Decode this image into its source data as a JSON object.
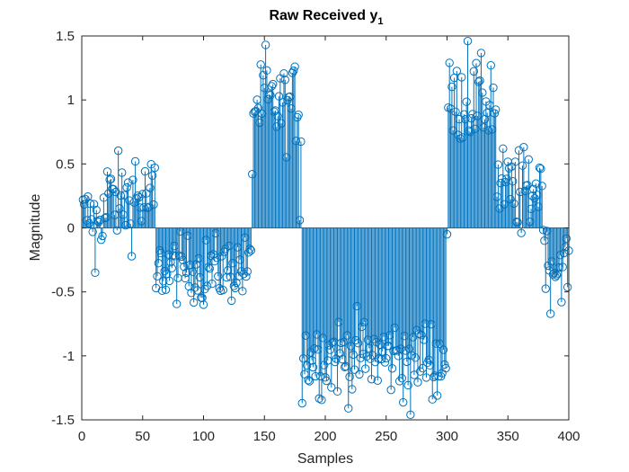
{
  "chart_data": {
    "type": "stem",
    "title_main": "Raw Received y",
    "title_sub": "1",
    "xlabel": "Samples",
    "ylabel": "Magnitude",
    "xlim": [
      0,
      400
    ],
    "ylim": [
      -1.5,
      1.5
    ],
    "xticks": [
      0,
      50,
      100,
      150,
      200,
      250,
      300,
      350,
      400
    ],
    "xtick_labels": [
      "0",
      "50",
      "100",
      "150",
      "200",
      "250",
      "300",
      "350",
      "400"
    ],
    "yticks": [
      -1.5,
      -1,
      -0.5,
      0,
      0.5,
      1,
      1.5
    ],
    "ytick_labels": [
      "-1.5",
      "-1",
      "-0.5",
      "0",
      "0.5",
      "1",
      "1.5"
    ],
    "grid": false,
    "color": "#0072BD",
    "segments": [
      {
        "x_start": 1,
        "x_end": 20,
        "mean": 0.1,
        "spread": 0.12
      },
      {
        "x_start": 21,
        "x_end": 60,
        "mean": 0.22,
        "spread": 0.17
      },
      {
        "x_start": 61,
        "x_end": 140,
        "mean": -0.32,
        "spread": 0.13
      },
      {
        "x_start": 141,
        "x_end": 180,
        "mean": 0.95,
        "spread": 0.16
      },
      {
        "x_start": 181,
        "x_end": 300,
        "mean": -1.0,
        "spread": 0.16
      },
      {
        "x_start": 301,
        "x_end": 340,
        "mean": 0.98,
        "spread": 0.16
      },
      {
        "x_start": 341,
        "x_end": 380,
        "mean": 0.3,
        "spread": 0.16
      },
      {
        "x_start": 381,
        "x_end": 400,
        "mean": -0.3,
        "spread": 0.15
      }
    ],
    "notable_points": [
      {
        "x": 11,
        "y": -0.35
      },
      {
        "x": 21,
        "y": 0.44
      },
      {
        "x": 44,
        "y": 0.52
      },
      {
        "x": 60,
        "y": 0.47
      },
      {
        "x": 61,
        "y": -0.47
      },
      {
        "x": 100,
        "y": -0.6
      },
      {
        "x": 140,
        "y": 0.42
      },
      {
        "x": 151,
        "y": 1.43
      },
      {
        "x": 175,
        "y": 1.26
      },
      {
        "x": 179,
        "y": 0.06
      },
      {
        "x": 181,
        "y": -1.37
      },
      {
        "x": 270,
        "y": -1.46
      },
      {
        "x": 292,
        "y": -1.31
      },
      {
        "x": 300,
        "y": -0.05
      },
      {
        "x": 317,
        "y": 1.46
      },
      {
        "x": 336,
        "y": 1.27
      },
      {
        "x": 361,
        "y": -0.04
      },
      {
        "x": 376,
        "y": 0.47
      },
      {
        "x": 380,
        "y": -0.1
      },
      {
        "x": 394,
        "y": -0.58
      }
    ]
  }
}
